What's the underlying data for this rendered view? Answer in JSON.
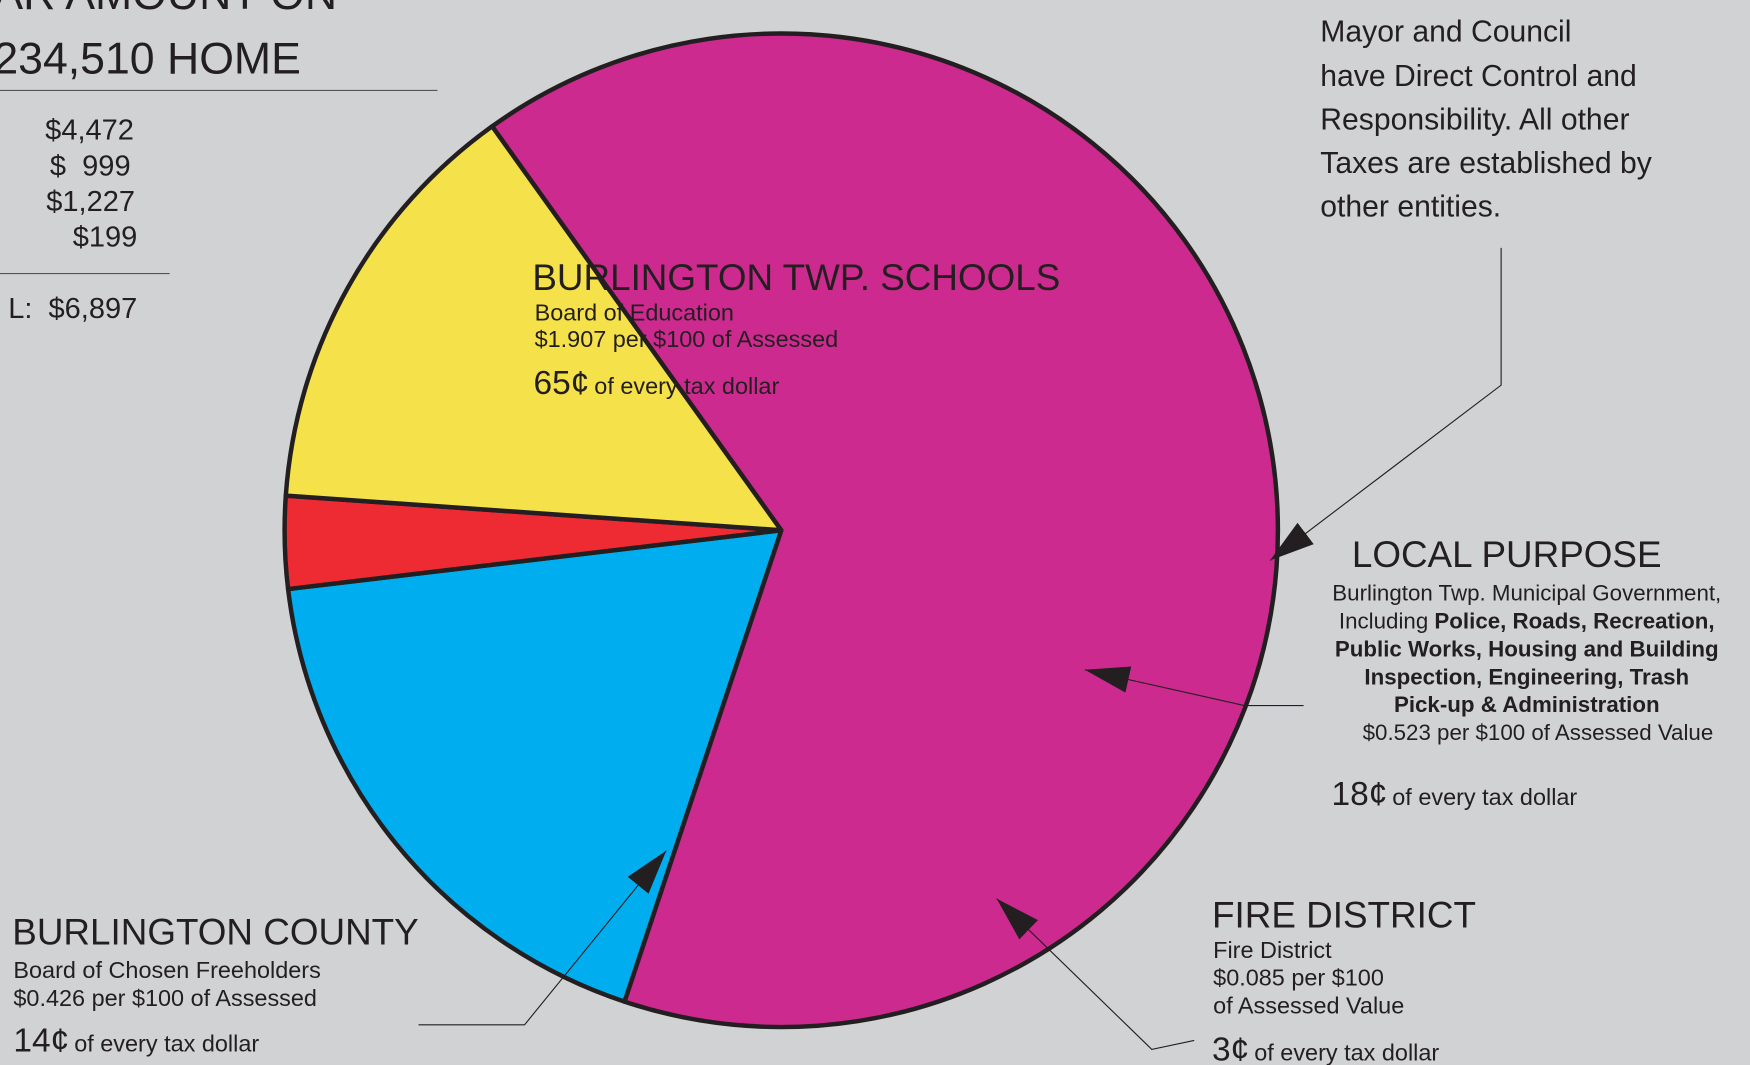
{
  "chart_data": {
    "type": "pie",
    "categories": [
      "BURLINGTON TWP. SCHOOLS",
      "LOCAL PURPOSE",
      "FIRE DISTRICT",
      "BURLINGTON COUNTY"
    ],
    "values": [
      65,
      18,
      3,
      14
    ],
    "value_labels": [
      "65¢",
      "18¢",
      "3¢",
      "14¢"
    ],
    "value_notes": [
      "of every tax dollar",
      "of every tax dollar",
      "of every tax dollar",
      "of every tax dollar"
    ],
    "colors": [
      "#cc2a8e",
      "#00aeef",
      "#ee2a33",
      "#f5e14a"
    ],
    "details": [
      [
        "Board of Education",
        "$1.907 per $100 of Assessed"
      ],
      [
        "Burlington Twp. Municipal Government,",
        "Including ",
        "Police, Roads, Recreation,",
        "Public Works, Housing and Building",
        "Inspection, Engineering, Trash",
        "Pick-up & Administration",
        "$0.523 per $100 of Assessed Value"
      ],
      [
        "Fire District",
        "$0.085 per $100",
        "of Assessed Value"
      ],
      [
        "Board of Chosen Freeholders",
        "$0.426 per $100 of Assessed"
      ]
    ]
  },
  "header": {
    "lines": [
      "AR AMOUNT ON",
      "234,510 HOME"
    ]
  },
  "summary": {
    "amounts": [
      "$4,472",
      "$  999",
      "$1,227",
      "$199"
    ],
    "total": "L:  $6,897"
  },
  "note": {
    "lines": [
      "Mayor and Council",
      "have Direct Control and",
      "Responsibility. All other",
      "Taxes are established by",
      "other entities."
    ]
  }
}
